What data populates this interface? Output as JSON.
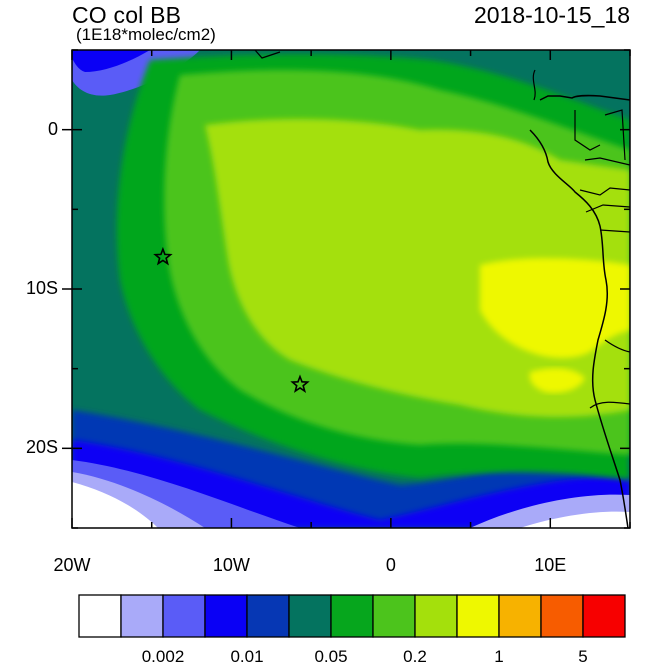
{
  "header": {
    "title": "CO col BB",
    "units": "(1E18*molec/cm2)",
    "datetime": "2018-10-15_18"
  },
  "map": {
    "lon_range": [
      -20,
      15
    ],
    "lat_range": [
      -25,
      5
    ],
    "y_ticks": [
      {
        "lat": 0,
        "label": "0"
      },
      {
        "lat": -10,
        "label": "10S"
      },
      {
        "lat": -20,
        "label": "20S"
      }
    ],
    "x_ticks": [
      {
        "lon": -20,
        "label": "20W"
      },
      {
        "lon": -10,
        "label": "10W"
      },
      {
        "lon": 0,
        "label": "0"
      },
      {
        "lon": 10,
        "label": "10E"
      }
    ],
    "markers": [
      {
        "name": "star-marker-1",
        "lon": -14.3,
        "lat": -8
      },
      {
        "name": "star-marker-2",
        "lon": -5.7,
        "lat": -16
      }
    ]
  },
  "colorbar": {
    "colors": [
      "#ffffff",
      "#a9aaf9",
      "#5a5cf7",
      "#0a00f5",
      "#0637b4",
      "#04735f",
      "#06a61d",
      "#4cc41c",
      "#a4e00c",
      "#eef800",
      "#f7b200",
      "#f75c00",
      "#f70000"
    ],
    "labels": [
      {
        "after_index": 1,
        "text": "0.002"
      },
      {
        "after_index": 3,
        "text": "0.01"
      },
      {
        "after_index": 5,
        "text": "0.05"
      },
      {
        "after_index": 7,
        "text": "0.2"
      },
      {
        "after_index": 9,
        "text": "1"
      },
      {
        "after_index": 11,
        "text": "5"
      }
    ]
  }
}
